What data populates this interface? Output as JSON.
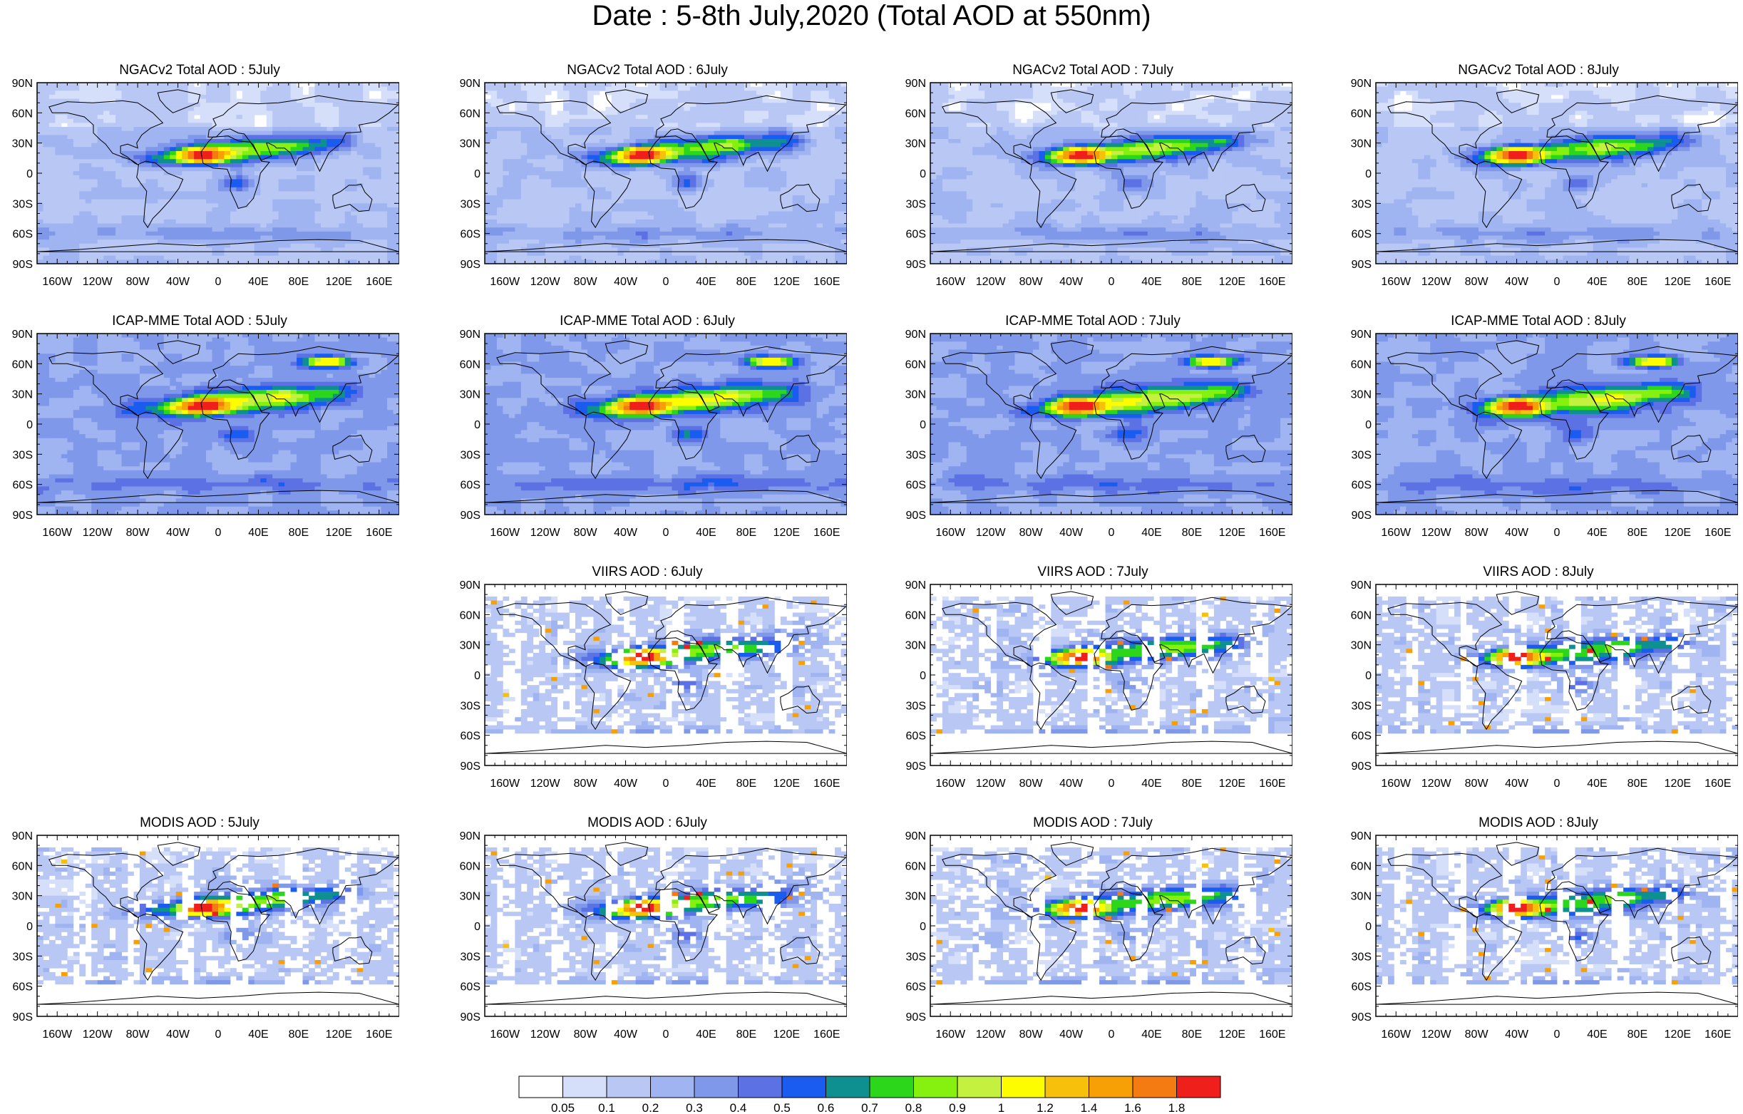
{
  "title": "Date : 5-8th July,2020 (Total AOD at 550nm)",
  "lat_ticks": [
    "90N",
    "60N",
    "30N",
    "0",
    "30S",
    "60S",
    "90S"
  ],
  "lon_ticks": [
    "160W",
    "120W",
    "80W",
    "40W",
    "0",
    "40E",
    "80E",
    "120E",
    "160E"
  ],
  "panels": [
    {
      "title": "NGACv2 Total AOD : 5July",
      "dataset": "NGACv2",
      "day": 5
    },
    {
      "title": "NGACv2 Total AOD : 6July",
      "dataset": "NGACv2",
      "day": 6
    },
    {
      "title": "NGACv2 Total AOD : 7July",
      "dataset": "NGACv2",
      "day": 7
    },
    {
      "title": "NGACv2 Total AOD : 8July",
      "dataset": "NGACv2",
      "day": 8
    },
    {
      "title": "ICAP-MME Total AOD : 5July",
      "dataset": "ICAP-MME",
      "day": 5
    },
    {
      "title": "ICAP-MME Total AOD : 6July",
      "dataset": "ICAP-MME",
      "day": 6
    },
    {
      "title": "ICAP-MME Total AOD : 7July",
      "dataset": "ICAP-MME",
      "day": 7
    },
    {
      "title": "ICAP-MME Total AOD : 8July",
      "dataset": "ICAP-MME",
      "day": 8
    },
    {
      "title": "VIIRS AOD : 6July",
      "dataset": "VIIRS",
      "day": 6
    },
    {
      "title": "VIIRS AOD : 7July",
      "dataset": "VIIRS",
      "day": 7
    },
    {
      "title": "VIIRS AOD : 8July",
      "dataset": "VIIRS",
      "day": 8
    },
    {
      "title": "MODIS AOD : 5July",
      "dataset": "MODIS",
      "day": 5
    },
    {
      "title": "MODIS AOD : 6July",
      "dataset": "MODIS",
      "day": 6
    },
    {
      "title": "MODIS AOD : 7July",
      "dataset": "MODIS",
      "day": 7
    },
    {
      "title": "MODIS AOD : 8July",
      "dataset": "MODIS",
      "day": 8
    }
  ],
  "colorbar": {
    "labels": [
      "0.05",
      "0.1",
      "0.2",
      "0.3",
      "0.4",
      "0.5",
      "0.6",
      "0.7",
      "0.8",
      "0.9",
      "1",
      "1.2",
      "1.4",
      "1.6",
      "1.8"
    ],
    "colors": [
      "#ffffff",
      "#d6dffa",
      "#b8c7f4",
      "#9fb4f0",
      "#7f98ea",
      "#5c72e4",
      "#1b5cf0",
      "#0e9090",
      "#2cd61a",
      "#86f00e",
      "#c4f040",
      "#fdfd00",
      "#f6c00b",
      "#f6a006",
      "#f47a12",
      "#ef1f1b"
    ]
  }
}
